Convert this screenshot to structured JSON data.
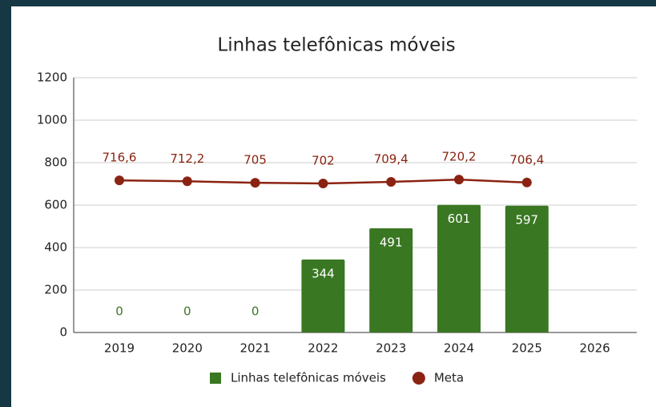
{
  "chart_data": {
    "type": "bar_line",
    "title": "Linhas telefônicas móveis",
    "categories": [
      "2019",
      "2020",
      "2021",
      "2022",
      "2023",
      "2024",
      "2025",
      "2026"
    ],
    "series": [
      {
        "name": "Linhas telefônicas móveis",
        "type": "bar",
        "color": "#3a7722",
        "values": [
          0,
          0,
          0,
          344,
          491,
          601,
          597,
          null
        ]
      },
      {
        "name": "Meta",
        "type": "line",
        "color": "#8b2312",
        "values": [
          716.6,
          712.2,
          705,
          702,
          709.4,
          720.2,
          706.4,
          null
        ],
        "value_labels": [
          "716,6",
          "712,2",
          "705",
          "702",
          "709,4",
          "720,2",
          "706,4",
          null
        ]
      }
    ],
    "ylim": [
      0,
      1200
    ],
    "yticks": [
      0,
      200,
      400,
      600,
      800,
      1000,
      1200
    ],
    "grid": true,
    "legend": "bottom"
  }
}
